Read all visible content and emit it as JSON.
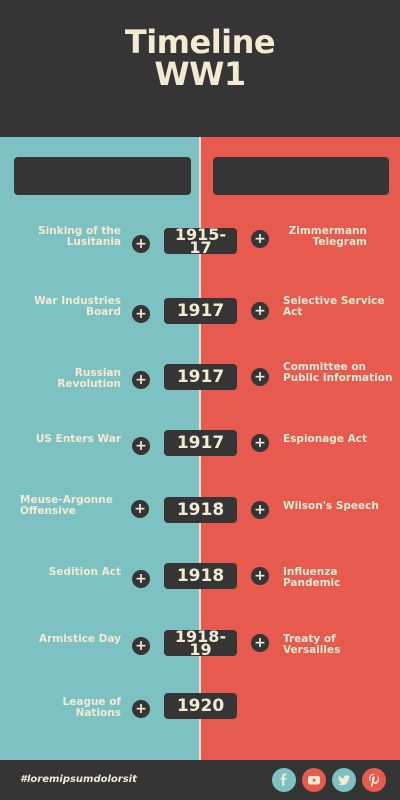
{
  "header": {
    "title_line1": "Timeline",
    "title_line2": "WW1"
  },
  "colors": {
    "dark": "#353535",
    "teal": "#7ec1c3",
    "coral": "#e65a4f",
    "cream": "#f2ead3"
  },
  "rows": [
    {
      "left": [
        "Sinking of the",
        "Lusitania"
      ],
      "year": [
        "1915-",
        "17"
      ],
      "right": [
        "Zimmermann",
        "Telegram"
      ]
    },
    {
      "left": [
        "War Industries",
        "Board"
      ],
      "year": [
        "1917"
      ],
      "right": [
        "Selective Service",
        "Act"
      ]
    },
    {
      "left": [
        "Russian Revolution"
      ],
      "year": [
        "1917"
      ],
      "right": [
        "Committee on",
        "Public Information"
      ]
    },
    {
      "left": [
        "US Enters War"
      ],
      "year": [
        "1917"
      ],
      "right": [
        "Espionage Act"
      ]
    },
    {
      "left": [
        "Meuse-Argonne",
        "Offensive"
      ],
      "year": [
        "1918"
      ],
      "right": [
        "Wilson's Speech"
      ]
    },
    {
      "left": [
        "Sedition Act"
      ],
      "year": [
        "1918"
      ],
      "right": [
        "Influenza Pandemic"
      ]
    },
    {
      "left": [
        "Armistice Day"
      ],
      "year": [
        "1918-",
        "19"
      ],
      "right": [
        "Treaty of Versailles"
      ]
    },
    {
      "left": [
        "League of Nations"
      ],
      "year": [
        "1920"
      ],
      "right": []
    }
  ],
  "plus_symbol": "+",
  "footer": {
    "hashtag": "#loremipsumdolorsit",
    "social_icons": [
      {
        "name": "facebook-icon",
        "color": "#7ec1c3",
        "glyph": "f"
      },
      {
        "name": "youtube-icon",
        "color": "#e65a4f",
        "glyph": ""
      },
      {
        "name": "twitter-icon",
        "color": "#7ec1c3",
        "glyph": ""
      },
      {
        "name": "pinterest-icon",
        "color": "#e65a4f",
        "glyph": "P"
      }
    ]
  }
}
